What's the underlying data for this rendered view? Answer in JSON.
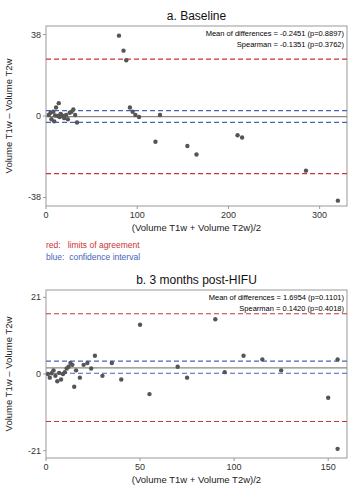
{
  "chart_data": [
    {
      "type": "scatter",
      "title": "a. Baseline",
      "x_label": "(Volume T1w + Volume T2w)/2",
      "y_label": "Volume T1w – Volume T2w",
      "annotations": [
        "Mean of differences = -0.2451 (p=0.8897)\nSpearman = -0.1351 (p=0.3762)"
      ],
      "x": [
        3,
        5,
        6,
        8,
        9,
        10,
        11,
        13,
        14,
        15,
        16,
        17,
        18,
        20,
        22,
        24,
        26,
        28,
        30,
        32,
        34,
        80,
        85,
        88,
        92,
        95,
        98,
        102,
        120,
        125,
        155,
        165,
        210,
        215,
        285,
        320
      ],
      "values": [
        0.5,
        1.5,
        -1.5,
        2.0,
        -2.5,
        0.2,
        4.0,
        0.0,
        6.0,
        -0.5,
        1.0,
        0.5,
        0.0,
        -1.0,
        0.5,
        -1.5,
        1.5,
        2.0,
        3.0,
        0.5,
        -3.0,
        37.5,
        30.5,
        26.0,
        4.0,
        2.0,
        0.5,
        -0.5,
        -12.0,
        0.5,
        -14.0,
        -18.0,
        -9.0,
        -10.0,
        -25.5,
        -39.5
      ],
      "color": "#555555",
      "hlines": [
        {
          "value": -0.2451,
          "color": "#888888",
          "line_style": "solid"
        },
        {
          "value": 26.5,
          "color": "#cc3333",
          "line_style": "dashed"
        },
        {
          "value": -26.9,
          "color": "#cc3333",
          "line_style": "dashed"
        },
        {
          "value": 2.5,
          "color": "#4466bb",
          "line_style": "dashed"
        },
        {
          "value": -3.0,
          "color": "#4466bb",
          "line_style": "dashed"
        }
      ],
      "legend_texts": [
        {
          "text": "red:   limits of agreement",
          "color": "#cc3333"
        },
        {
          "text": "blue:  confidence interval",
          "color": "#4466bb"
        }
      ],
      "xlim": [
        0,
        330
      ],
      "ylim": [
        -42,
        42
      ],
      "xticks": [
        0,
        100,
        200,
        300
      ],
      "yticks": [
        -38,
        0,
        38
      ],
      "grid": false
    },
    {
      "type": "scatter",
      "title": "b. 3 months post-HIFU",
      "x_label": "(Volume T1w + Volume T2w)/2",
      "y_label": "Volume T1w – Volume T2w",
      "annotations": [
        "Mean of differences = 1.6954 (p=0.1101)\nSpearman = 0.1420 (p=0.4018)"
      ],
      "x": [
        1,
        2,
        3,
        4,
        5,
        6,
        7,
        8,
        9,
        10,
        11,
        12,
        13,
        14,
        15,
        16,
        18,
        20,
        22,
        24,
        26,
        30,
        35,
        40,
        50,
        55,
        70,
        75,
        90,
        95,
        105,
        115,
        125,
        150,
        155,
        155
      ],
      "values": [
        0.0,
        -1.0,
        0.2,
        1.0,
        -0.5,
        -2.0,
        0.3,
        -1.5,
        0.0,
        0.5,
        1.5,
        2.0,
        3.0,
        2.5,
        -3.5,
        1.0,
        -1.0,
        2.5,
        3.0,
        1.5,
        5.0,
        -0.5,
        3.0,
        -1.5,
        13.5,
        -5.5,
        2.0,
        -1.0,
        15.0,
        0.5,
        5.0,
        4.0,
        1.0,
        -6.5,
        4.0,
        -20.5
      ],
      "color": "#555555",
      "hlines": [
        {
          "value": 1.6954,
          "color": "#888888",
          "line_style": "solid"
        },
        {
          "value": 16.5,
          "color": "#cc3333",
          "line_style": "dashed"
        },
        {
          "value": -13.0,
          "color": "#cc3333",
          "line_style": "dashed"
        },
        {
          "value": 3.5,
          "color": "#4466bb",
          "line_style": "dashed"
        },
        {
          "value": 0.2,
          "color": "#4466bb",
          "line_style": "dashed"
        }
      ],
      "xlim": [
        0,
        160
      ],
      "ylim": [
        -23,
        23
      ],
      "xticks": [
        0,
        50,
        100,
        150
      ],
      "yticks": [
        -21,
        0,
        21
      ],
      "grid": false
    }
  ]
}
